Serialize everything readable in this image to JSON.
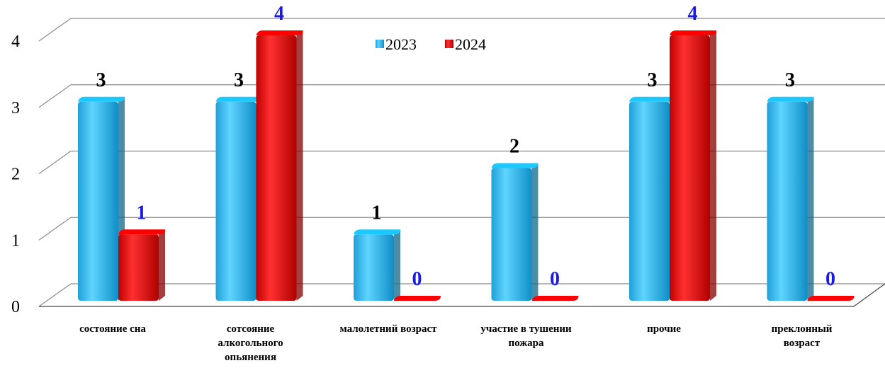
{
  "chart_data": {
    "type": "bar3d",
    "categories": [
      "состояние сна",
      "сотсояние алкогольного опьянения",
      "малолетний возраст",
      "участие в тушении пожара",
      "прочие",
      "преклонный возраст"
    ],
    "series": [
      {
        "name": "2023",
        "color": "#19aee6",
        "label_color": "#000000",
        "values": [
          3,
          3,
          1,
          2,
          3,
          3
        ]
      },
      {
        "name": "2024",
        "color": "#e00000",
        "label_color": "#1a1ae6",
        "values": [
          1,
          4,
          0,
          0,
          4,
          0
        ]
      }
    ],
    "ylim": [
      0,
      4
    ],
    "yticks": [
      0,
      1,
      2,
      3,
      4
    ],
    "grid": true,
    "legend": "top"
  }
}
